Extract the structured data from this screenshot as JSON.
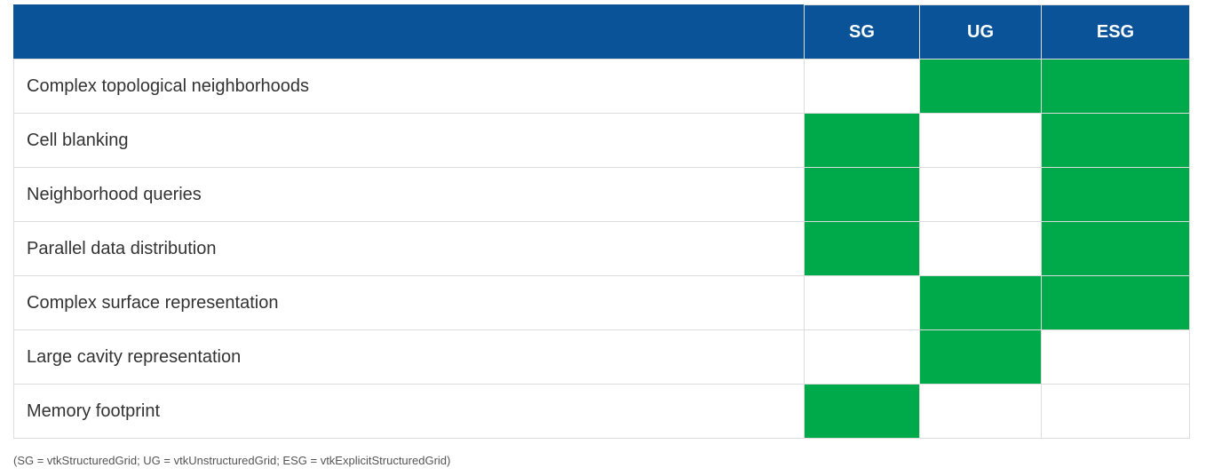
{
  "table": {
    "columns": [
      "SG",
      "UG",
      "ESG"
    ],
    "rows": [
      {
        "feature": "Complex topological neighborhoods",
        "values": [
          false,
          true,
          true
        ]
      },
      {
        "feature": "Cell blanking",
        "values": [
          true,
          false,
          true
        ]
      },
      {
        "feature": "Neighborhood queries",
        "values": [
          true,
          false,
          true
        ]
      },
      {
        "feature": "Parallel data distribution",
        "values": [
          true,
          false,
          true
        ]
      },
      {
        "feature": "Complex surface representation",
        "values": [
          false,
          true,
          true
        ]
      },
      {
        "feature": "Large cavity representation",
        "values": [
          false,
          true,
          false
        ]
      },
      {
        "feature": "Memory footprint",
        "values": [
          true,
          false,
          false
        ]
      }
    ]
  },
  "colors": {
    "header_bg": "#0a5399",
    "supported": "#00a94a",
    "unsupported": "#ffffff"
  },
  "footnote": "(SG = vtkStructuredGrid; UG = vtkUnstructuredGrid; ESG = vtkExplicitStructuredGrid)"
}
